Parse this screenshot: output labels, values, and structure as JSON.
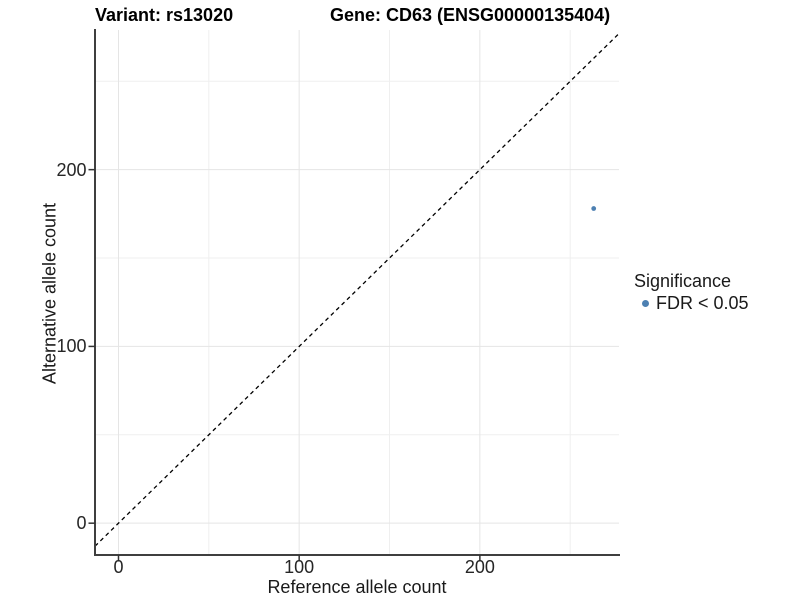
{
  "header": {
    "variant_title": "Variant: rs13020",
    "gene_title": "Gene: CD63 (ENSG00000135404)"
  },
  "chart_data": {
    "type": "scatter",
    "xlabel": "Reference allele count",
    "ylabel": "Alternative allele count",
    "xlim": [
      -13,
      277
    ],
    "ylim": [
      -18,
      279
    ],
    "xticks": [
      0,
      100,
      200
    ],
    "yticks": [
      0,
      100,
      200
    ],
    "minor_grid_step": 50,
    "grid": true,
    "reference_line": "identity y = x, black dashed",
    "points": [
      {
        "x": 263,
        "y": 178,
        "series": "FDR < 0.05"
      }
    ],
    "legend": {
      "title": "Significance",
      "position": "right",
      "items": [
        {
          "label": "FDR < 0.05",
          "color": "#4d80b2"
        }
      ]
    },
    "colors": {
      "point": "#4d80b2",
      "grid_major": "#e5e5e5",
      "grid_minor": "#efefef",
      "axis_line": "#3f3f3f",
      "tick_mark": "#333333",
      "reference_line": "#000000"
    }
  }
}
